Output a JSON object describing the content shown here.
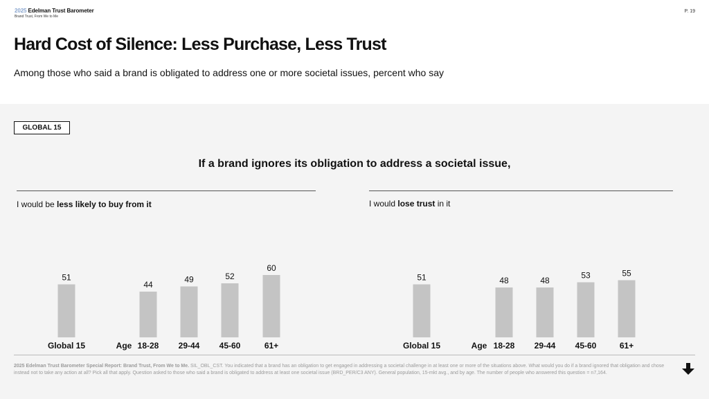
{
  "header": {
    "year": "2025",
    "brand": "Edelman Trust Barometer",
    "report": "Brand Trust, From We to Me",
    "page": "P. 19"
  },
  "title": "Hard Cost of Silence: Less Purchase, Less Trust",
  "subtitle": "Among those who said a brand is obligated to address one or more societal issues, percent who say",
  "badge": "GLOBAL 15",
  "heading": "If a brand ignores its obligation to address a societal issue,",
  "panels": [
    {
      "prefix": "I would be ",
      "bold": "less likely to buy from it",
      "suffix": ""
    },
    {
      "prefix": "I would ",
      "bold": "lose trust",
      "suffix": " in it"
    }
  ],
  "age_label": "Age",
  "colors": {
    "bar": "#c4c4c4",
    "panel_bg": "#f4f4f4",
    "year_accent": "#8aa6cf"
  },
  "chart_data": [
    {
      "type": "bar",
      "title": "I would be less likely to buy from it",
      "categories": [
        "Global 15",
        "18-28",
        "29-44",
        "45-60",
        "61+"
      ],
      "values": [
        51,
        44,
        49,
        52,
        60
      ],
      "ylim": [
        0,
        100
      ]
    },
    {
      "type": "bar",
      "title": "I would lose trust in it",
      "categories": [
        "Global 15",
        "18-28",
        "29-44",
        "45-60",
        "61+"
      ],
      "values": [
        51,
        48,
        48,
        53,
        55
      ],
      "ylim": [
        0,
        100
      ]
    }
  ],
  "footnote": {
    "bold": "2025 Edelman Trust Barometer Special Report: Brand Trust, From We to Me.",
    "text": " SIL_OBL_CST. You indicated that a brand has an obligation to get engaged in addressing a societal challenge in at least one or more of the situations above. What would you do if a brand ignored that obligation and chose instead not to take any action at all? Pick all that apply. Question asked to those who said a brand is obligated to address at least one societal issue (BRD_PER/C3 ANY). General population, 15-mkt avg., and by age. The number of people who answered this question = n7,164."
  }
}
